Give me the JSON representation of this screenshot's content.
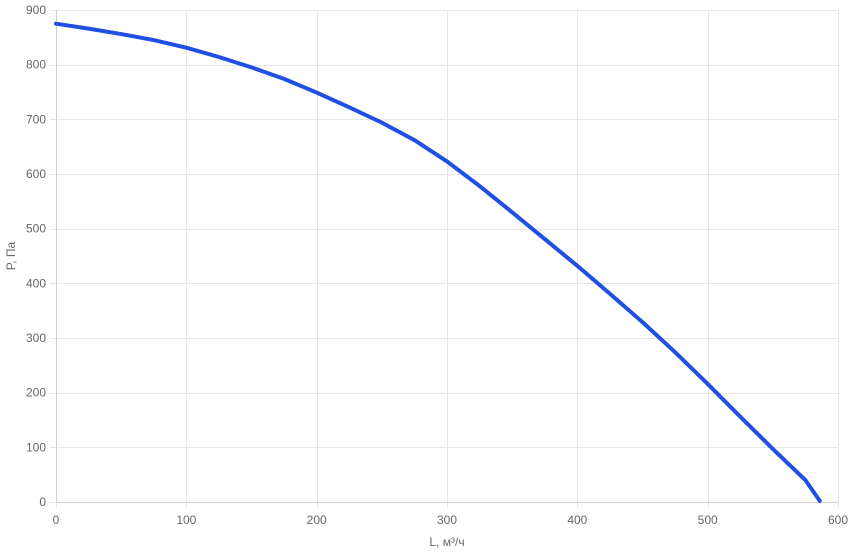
{
  "chart_data": {
    "type": "line",
    "title": "",
    "xlabel": "L, м³/ч",
    "ylabel": "P, Па",
    "xlim": [
      0,
      600
    ],
    "ylim": [
      0,
      900
    ],
    "x_ticks": [
      0,
      100,
      200,
      300,
      400,
      500,
      600
    ],
    "y_ticks": [
      0,
      100,
      200,
      300,
      400,
      500,
      600,
      700,
      800,
      900
    ],
    "x_tick_labels": [
      "0",
      "100",
      "200",
      "300",
      "400",
      "500",
      "600"
    ],
    "y_tick_labels": [
      "0",
      "100",
      "200",
      "300",
      "400",
      "500",
      "600",
      "700",
      "800",
      "900"
    ],
    "grid": true,
    "legend": "none",
    "series": [
      {
        "color": "#1f4fe3",
        "x": [
          0,
          25,
          50,
          75,
          100,
          125,
          150,
          175,
          200,
          225,
          250,
          275,
          300,
          325,
          350,
          375,
          400,
          425,
          450,
          475,
          500,
          525,
          550,
          575,
          586
        ],
        "y": [
          875,
          866,
          856,
          845,
          831,
          814,
          795,
          774,
          749,
          722,
          694,
          662,
          623,
          578,
          530,
          481,
          432,
          381,
          329,
          274,
          216,
          156,
          97,
          40,
          2
        ]
      }
    ]
  },
  "colors": {
    "grid": "#e6e6e6",
    "axis": "#d0d0d0",
    "text": "#666666",
    "line": "#1f4fe3"
  }
}
